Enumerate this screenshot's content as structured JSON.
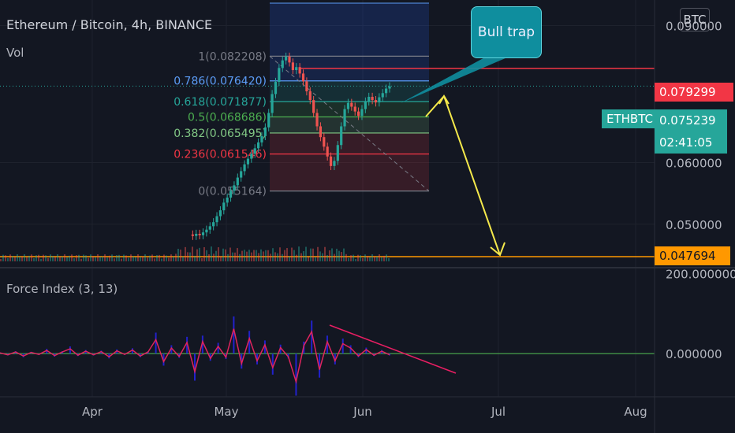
{
  "header": {
    "title": "Ethereum / Bitcoin, 4h, BINANCE",
    "volume_label": "Vol",
    "currency": "BTC"
  },
  "annotation": {
    "callout": "Bull trap"
  },
  "price_tags": {
    "resistance": "0.079299",
    "symbol": "ETHBTC",
    "last": "0.075239",
    "countdown": "02:41:05",
    "target": "0.047694"
  },
  "colors": {
    "background": "#131722",
    "up": "#26a69a",
    "down": "#ef5350",
    "arrow": "#f5e94b",
    "resistance_line": "#f23645",
    "target_line": "#ff9800",
    "force_index_line": "#e0245e",
    "force_index_hist": "#2222cc",
    "trendline": "#e91e63",
    "zero_line": "#4caf50"
  },
  "chart_data": [
    {
      "type": "line",
      "title": "Ethereum / Bitcoin, 4h, BINANCE",
      "x_tick_labels": [
        "Apr",
        "May",
        "Jun",
        "Jul",
        "Aug"
      ],
      "y_tick_labels": [
        "0.090000",
        "0.060000",
        "0.050000"
      ],
      "y_scale": "log",
      "ylim": [
        0.045,
        0.098
      ],
      "series": [
        {
          "values": [
            0.0485,
            0.0483,
            0.0486,
            0.0484,
            0.0488,
            0.0492,
            0.0497,
            0.0503,
            0.0512,
            0.0521,
            0.0533,
            0.0541,
            0.0552,
            0.0561,
            0.0574,
            0.0585,
            0.0597,
            0.0607,
            0.0616,
            0.0626,
            0.0637,
            0.0649,
            0.0666,
            0.0695,
            0.0735,
            0.0762,
            0.0794,
            0.0812,
            0.0821,
            0.0807,
            0.0789,
            0.0796,
            0.0781,
            0.0763,
            0.0741,
            0.0722,
            0.0695,
            0.0668,
            0.0647,
            0.0629,
            0.0611,
            0.0594,
            0.0603,
            0.0632,
            0.0668,
            0.0703,
            0.0716,
            0.0708,
            0.0698,
            0.0689,
            0.0703,
            0.0719,
            0.0729,
            0.0722,
            0.0717,
            0.0728,
            0.0737,
            0.0747,
            0.0752
          ]
        }
      ],
      "fibonacci": [
        {
          "ratio": "1",
          "price": 0.082208,
          "label": "1(0.082208)",
          "color": "#787b86"
        },
        {
          "ratio": "0.786",
          "price": 0.07642,
          "label": "0.786(0.076420)",
          "color": "#5b9cf6"
        },
        {
          "ratio": "0.618",
          "price": 0.071877,
          "label": "0.618(0.071877)",
          "color": "#26a69a"
        },
        {
          "ratio": "0.5",
          "price": 0.068686,
          "label": "0.5(0.068686)",
          "color": "#4caf50"
        },
        {
          "ratio": "0.382",
          "price": 0.065495,
          "label": "0.382(0.065495)",
          "color": "#81c784"
        },
        {
          "ratio": "0.236",
          "price": 0.061546,
          "label": "0.236(0.061546)",
          "color": "#f23645"
        },
        {
          "ratio": "0",
          "price": 0.055164,
          "label": "0(0.055164)",
          "color": "#787b86"
        }
      ],
      "horizontal_levels": [
        0.079299,
        0.047694
      ],
      "last_price": 0.075239
    },
    {
      "type": "line",
      "title": "Force Index (3, 13)",
      "y_tick_labels": [
        "200.000000",
        "0.000000"
      ],
      "ylim": [
        -100,
        205
      ],
      "series": [
        {
          "values": [
            2,
            -3,
            4,
            -6,
            3,
            -2,
            8,
            -5,
            4,
            12,
            -4,
            6,
            -3,
            5,
            -8,
            7,
            -2,
            9,
            -6,
            4,
            35,
            -20,
            14,
            -7,
            28,
            -45,
            30,
            -12,
            18,
            -9,
            62,
            -25,
            38,
            -18,
            22,
            -35,
            15,
            -8,
            -70,
            20,
            55,
            -40,
            30,
            -18,
            25,
            14,
            -6,
            10,
            -4,
            6,
            -3
          ]
        }
      ]
    }
  ]
}
